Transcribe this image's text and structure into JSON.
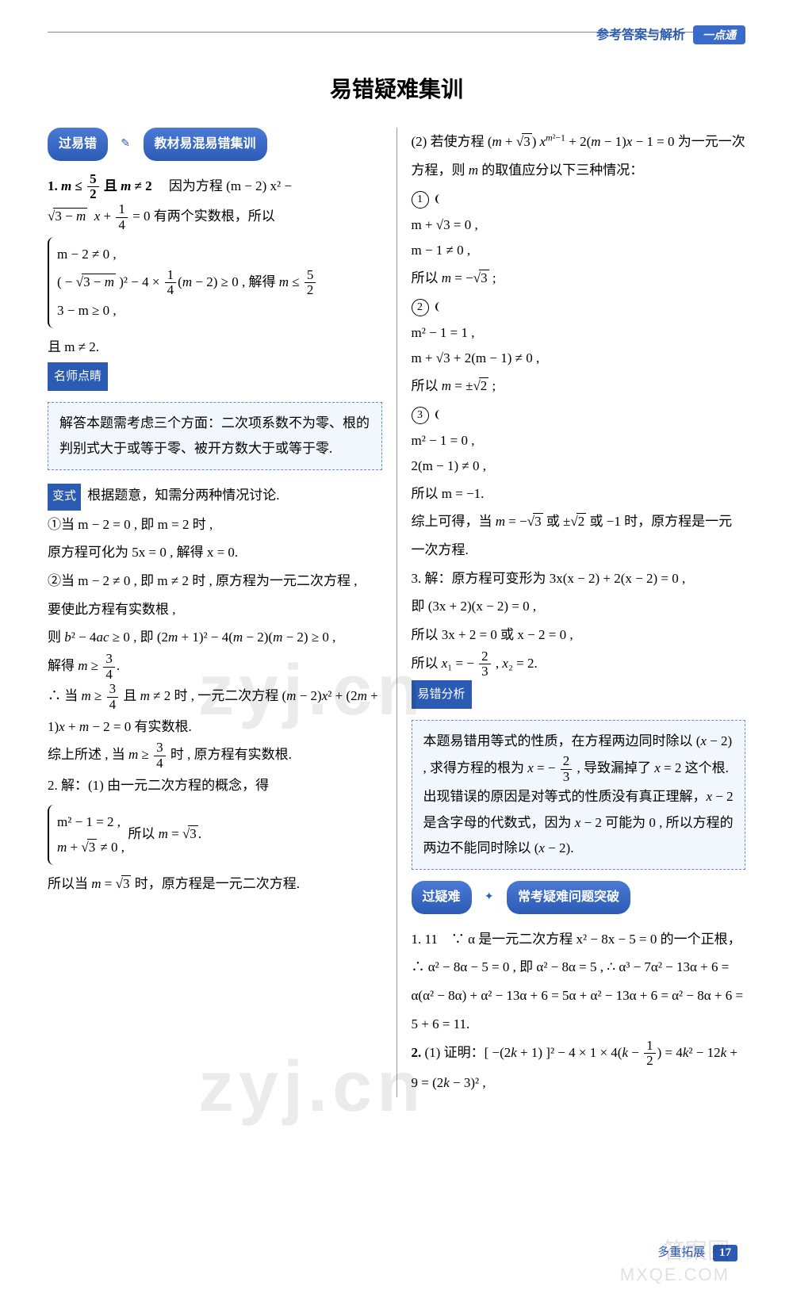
{
  "header": {
    "label": "参考答案与解析",
    "badge": "一点通"
  },
  "main_title": "易错疑难集训",
  "section1": {
    "pill_left": "过易错",
    "pill_right": "教材易混易错集训",
    "q1_prefix": "1. ",
    "q1_answer_html": "m ≤ 5/2 且 m ≠ 2",
    "q1_reason_a": "因为方程 (m − 2) x² −",
    "q1_reason_b": "√(3 − m) x + 1/4 = 0 有两个实数根，所以",
    "q1_brace_1": "m − 2 ≠ 0 ,",
    "q1_brace_2": "( − √(3 − m) )² − 4 × 1/4 (m − 2) ≥ 0 , 解得 m ≤ 5/2",
    "q1_brace_3": "3 − m ≥ 0 ,",
    "q1_tail": "且 m ≠ 2.",
    "tip_label": "名师点睛",
    "tip_body": "解答本题需考虑三个方面：二次项系数不为零、根的判别式大于或等于零、被开方数大于或等于零.",
    "var_label": "变式",
    "var_intro": "根据题意，知需分两种情况讨论.",
    "var_c1a": "①当 m − 2 = 0 , 即 m = 2 时 ,",
    "var_c1b": "原方程可化为 5x = 0 , 解得 x = 0.",
    "var_c2a": "②当 m − 2 ≠ 0 , 即 m ≠ 2 时 , 原方程为一元二次方程 ,",
    "var_c2b": "要使此方程有实数根 ,",
    "var_c2c": "则 b² − 4ac ≥ 0 , 即 (2m + 1)² − 4(m − 2)(m − 2) ≥ 0 ,",
    "var_c2d": "解得 m ≥ 3/4.",
    "var_c2e": "∴ 当 m ≥ 3/4 且 m ≠ 2 时 , 一元二次方程 (m − 2) x² + (2m + 1) x + m − 2 = 0 有实数根.",
    "var_c2f": "综上所述 , 当 m ≥ 3/4 时 , 原方程有实数根.",
    "q2_head": "2. 解：(1) 由一元二次方程的概念，得",
    "q2_brace_1": "m² − 1 = 2 ,",
    "q2_brace_2": "m + √3 ≠ 0 ,",
    "q2_brace_tail": "所以 m = √3.",
    "q2_l2": "所以当 m = √3 时，原方程是一元二次方程."
  },
  "right": {
    "p2a": "(2) 若使方程 (m + √3) x^{m²−1} + 2(m − 1)x − 1 = 0 为一元一次方程，则 m 的取值应分以下三种情况：",
    "case1_a": "m + √3 = 0 ,",
    "case1_b": "m − 1 ≠ 0 ,",
    "case1_tail": "所以 m = −√3 ;",
    "case2_a": "m² − 1 = 1 ,",
    "case2_b": "m + √3 + 2(m − 1) ≠ 0 ,",
    "case2_tail": "所以 m = ±√2 ;",
    "case3_a": "m² − 1 = 0 ,",
    "case3_b": "2(m − 1) ≠ 0 ,",
    "case3_tail": "所以 m = −1.",
    "concl": "综上可得，当 m = −√3 或 ±√2 或 −1 时，原方程是一元一次方程.",
    "q3_a": "3. 解：原方程可变形为 3x(x − 2) + 2(x − 2) = 0 ,",
    "q3_b": "即 (3x + 2)(x − 2) = 0 ,",
    "q3_c": "所以 3x + 2 = 0 或 x − 2 = 0 ,",
    "q3_d": "所以 x₁ = − 2/3 , x₂ = 2.",
    "err_label": "易错分析",
    "err_body": "本题易错用等式的性质，在方程两边同时除以 (x − 2) , 求得方程的根为 x = − 2/3 , 导致漏掉了 x = 2 这个根. 出现错误的原因是对等式的性质没有真正理解，x − 2 是含字母的代数式，因为 x − 2 可能为 0 , 所以方程的两边不能同时除以 (x − 2).",
    "sec2_pill_left": "过疑难",
    "sec2_pill_right": "常考疑难问题突破",
    "s2_q1": "1. 11　∵ α 是一元二次方程 x² − 8x − 5 = 0 的一个正根，∴ α² − 8α − 5 = 0 , 即 α² − 8α = 5 , ∴ α³ − 7α² − 13α + 6 = α(α² − 8α) + α² − 13α + 6 = 5α + α² − 13α + 6 = α² − 8α + 6 = 5 + 6 = 11.",
    "s2_q2": "2. (1) 证明：[ −(2k + 1) ]² − 4 × 1 × 4(k − 1/2) = 4k² − 12k + 9 = (2k − 3)² ,"
  },
  "footer": {
    "label": "多重拓展",
    "page": "17"
  },
  "watermarks": {
    "w1": "zyj.cn",
    "w2": "zyj.cn",
    "w3": "MXQE.COM",
    "w4": "答案圈"
  },
  "colors": {
    "accent": "#2b5bb3",
    "pill_grad_top": "#4a7ad6",
    "note_bg": "#f2f6fd",
    "note_border": "#6a8bd4"
  }
}
